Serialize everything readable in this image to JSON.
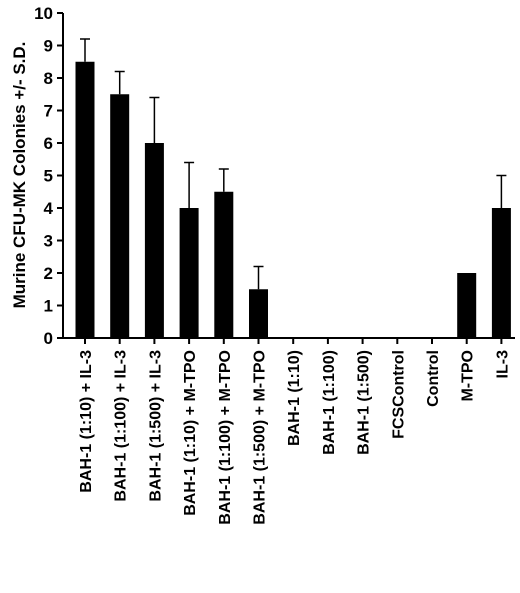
{
  "chart_data": {
    "type": "bar",
    "ylabel": "Murine CFU-MK Colonies +/- S.D.",
    "ylim": [
      0,
      10
    ],
    "yticks": [
      0,
      1,
      2,
      3,
      4,
      5,
      6,
      7,
      8,
      9,
      10
    ],
    "categories": [
      "BAH-1 (1:10) + IL-3",
      "BAH-1 (1:100) + IL-3",
      "BAH-1 (1:500) + IL-3",
      "BAH-1 (1:10) + M-TPO",
      "BAH-1 (1:100) + M-TPO",
      "BAH-1 (1:500) + M-TPO",
      "BAH-1 (1:10)",
      "BAH-1 (1:100)",
      "BAH-1 (1:500)",
      "FCSControl",
      "Control",
      "M-TPO",
      "IL-3"
    ],
    "values": [
      8.5,
      7.5,
      6.0,
      4.0,
      4.5,
      1.5,
      0,
      0,
      0,
      0,
      0,
      2.0,
      4.0
    ],
    "errors": [
      0.7,
      0.7,
      1.4,
      1.4,
      0.7,
      0.7,
      0,
      0,
      0,
      0,
      0,
      0,
      1.0
    ],
    "bar_color": "#000000",
    "grid": false,
    "legend": "none"
  }
}
